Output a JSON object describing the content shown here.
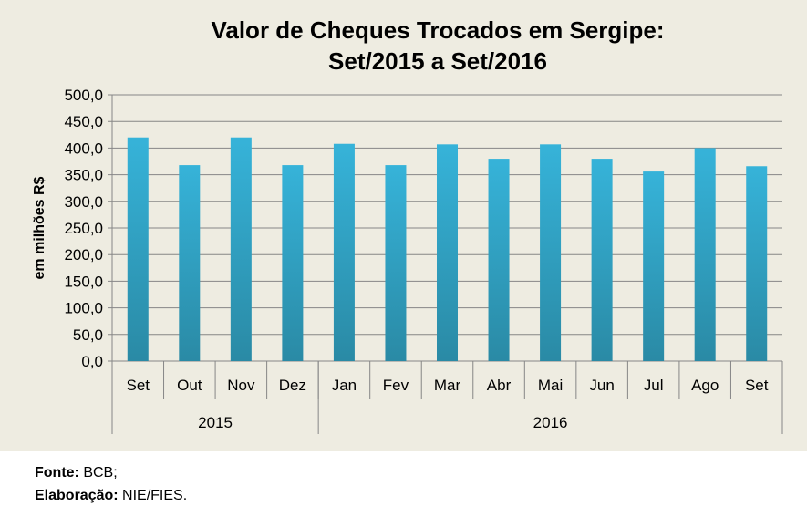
{
  "footer": {
    "source_label": "Fonte:",
    "source_value": " BCB;",
    "elab_label": "Elaboração:",
    "elab_value": " NIE/FIES."
  },
  "chart_data": {
    "type": "bar",
    "title_line1": "Valor de Cheques Trocados em Sergipe:",
    "title_line2": "Set/2015 a  Set/2016",
    "ylabel": "em milhões R$",
    "xlabel": "",
    "ylim": [
      0,
      500
    ],
    "yticks": [
      "0,0",
      "50,0",
      "100,0",
      "150,0",
      "200,0",
      "250,0",
      "300,0",
      "350,0",
      "400,0",
      "450,0",
      "500,0"
    ],
    "categories": [
      "Set",
      "Out",
      "Nov",
      "Dez",
      "Jan",
      "Fev",
      "Mar",
      "Abr",
      "Mai",
      "Jun",
      "Jul",
      "Ago",
      "Set"
    ],
    "groups": [
      {
        "label": "2015",
        "count": 4
      },
      {
        "label": "2016",
        "count": 9
      }
    ],
    "values": [
      420,
      368,
      420,
      368,
      408,
      368,
      407,
      380,
      407,
      380,
      356,
      400,
      366
    ],
    "grid": true,
    "bar_color_top": "#36B3D9",
    "bar_color_bottom": "#2A8AA5"
  }
}
